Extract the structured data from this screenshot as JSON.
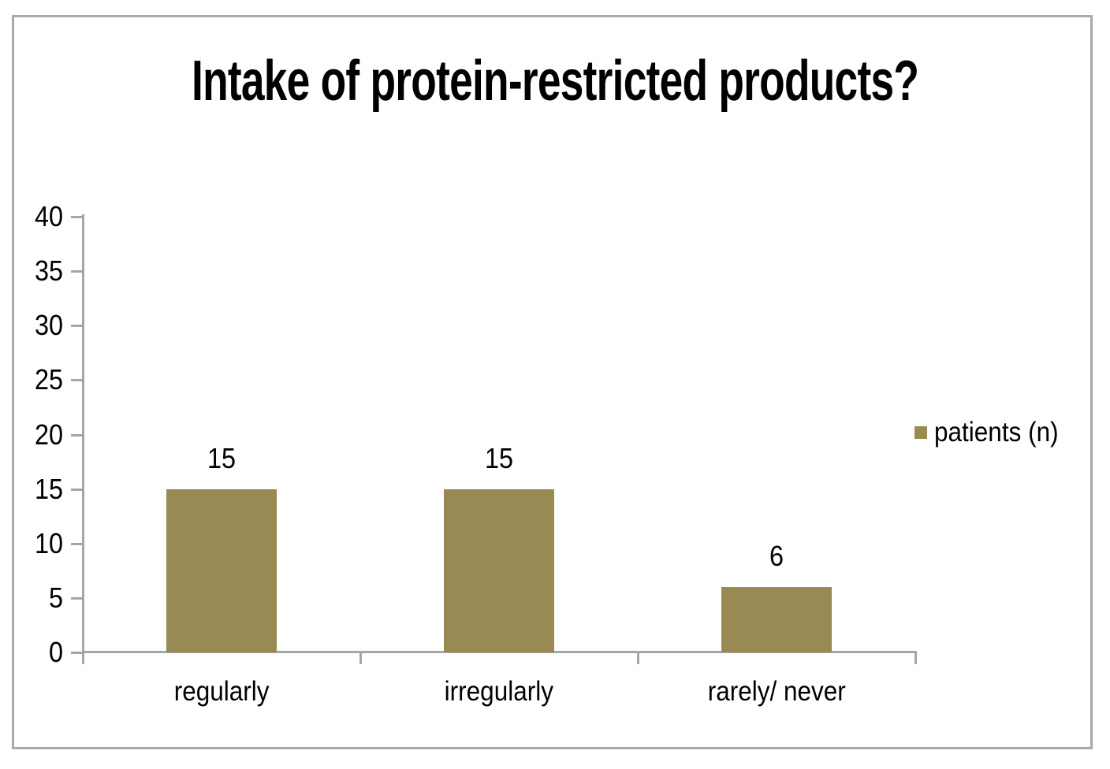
{
  "title": "Intake of protein-restricted products?",
  "legend": {
    "label": "patients (n)"
  },
  "colors": {
    "bar": "#988A52",
    "axis_line": "#A6A6A6",
    "frame_border": "#A9A9A9",
    "text": "#000000",
    "background": "#FFFFFF"
  },
  "chart_data": {
    "type": "bar",
    "title": "Intake of protein-restricted products?",
    "categories": [
      "regularly",
      "irregularly",
      "rarely/ never"
    ],
    "series": [
      {
        "name": "patients (n)",
        "values": [
          15,
          15,
          6
        ],
        "color": "#988A52"
      }
    ],
    "data_labels": [
      "15",
      "15",
      "6"
    ],
    "xlabel": "",
    "ylabel": "",
    "ylim": [
      0,
      40
    ],
    "ytick_step": 5,
    "yticks": [
      "0",
      "5",
      "10",
      "15",
      "20",
      "25",
      "30",
      "35",
      "40"
    ],
    "grid": false,
    "legend_position": "right",
    "plot_background": "white"
  }
}
